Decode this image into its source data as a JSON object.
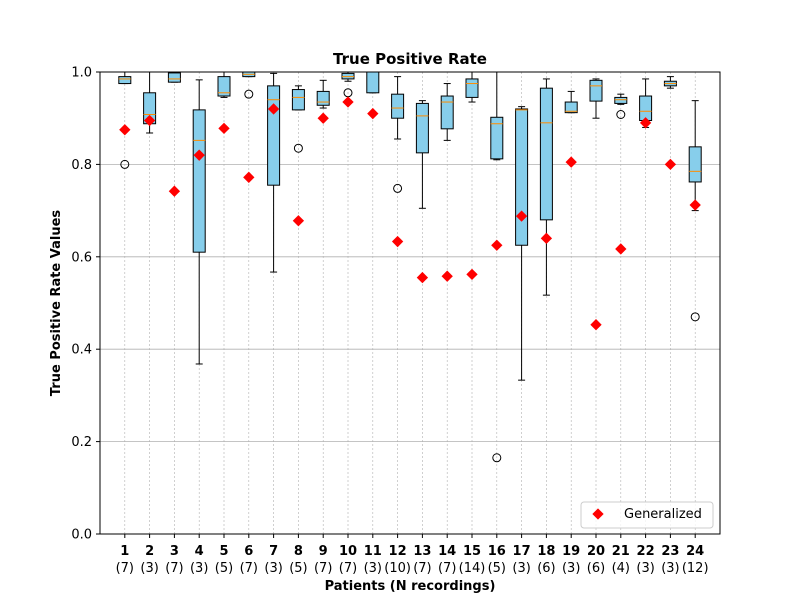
{
  "chart_data": {
    "type": "box",
    "title": "True Positive Rate",
    "xlabel": "Patients (N recordings)",
    "ylabel": "True Positive Rate Values",
    "ylim": [
      0.0,
      1.0
    ],
    "yticks": [
      "0.0",
      "0.2",
      "0.4",
      "0.6",
      "0.8",
      "1.0"
    ],
    "grid": true,
    "legend": {
      "placement": "lower-right",
      "entries": [
        "Generalized"
      ]
    },
    "colors": {
      "box_fill": "#87ceeb",
      "median": "#ff8c00",
      "generalized_marker": "#ff0000",
      "grid": "#b0b0b0"
    },
    "categories": [
      "1",
      "2",
      "3",
      "4",
      "5",
      "6",
      "7",
      "8",
      "9",
      "10",
      "11",
      "12",
      "13",
      "14",
      "15",
      "16",
      "17",
      "18",
      "19",
      "20",
      "21",
      "22",
      "23",
      "24"
    ],
    "n_recordings": [
      "(7)",
      "(3)",
      "(7)",
      "(3)",
      "(5)",
      "(7)",
      "(3)",
      "(5)",
      "(7)",
      "(7)",
      "(3)",
      "(10)",
      "(7)",
      "(7)",
      "(14)",
      "(5)",
      "(3)",
      "(6)",
      "(3)",
      "(6)",
      "(4)",
      "(3)",
      "(3)",
      "(12)"
    ],
    "boxes": [
      {
        "whislo": 0.975,
        "q1": 0.975,
        "med": 0.985,
        "q3": 0.99,
        "whishi": 1.0,
        "fliers": [
          0.8
        ]
      },
      {
        "whislo": 0.868,
        "q1": 0.888,
        "med": 0.908,
        "q3": 0.955,
        "whishi": 1.0,
        "fliers": []
      },
      {
        "whislo": 0.978,
        "q1": 0.978,
        "med": 0.985,
        "q3": 0.998,
        "whishi": 1.0,
        "fliers": []
      },
      {
        "whislo": 0.368,
        "q1": 0.61,
        "med": 0.852,
        "q3": 0.918,
        "whishi": 0.983,
        "fliers": []
      },
      {
        "whislo": 0.945,
        "q1": 0.948,
        "med": 0.955,
        "q3": 0.99,
        "whishi": 1.0,
        "fliers": []
      },
      {
        "whislo": 0.99,
        "q1": 0.99,
        "med": 0.995,
        "q3": 1.0,
        "whishi": 1.0,
        "fliers": [
          0.952
        ]
      },
      {
        "whislo": 0.567,
        "q1": 0.755,
        "med": 0.94,
        "q3": 0.97,
        "whishi": 0.997,
        "fliers": []
      },
      {
        "whislo": 0.918,
        "q1": 0.918,
        "med": 0.945,
        "q3": 0.962,
        "whishi": 0.97,
        "fliers": [
          0.835
        ]
      },
      {
        "whislo": 0.922,
        "q1": 0.928,
        "med": 0.935,
        "q3": 0.958,
        "whishi": 0.982,
        "fliers": []
      },
      {
        "whislo": 0.98,
        "q1": 0.985,
        "med": 0.99,
        "q3": 0.997,
        "whishi": 1.0,
        "fliers": [
          0.955
        ]
      },
      {
        "whislo": 0.955,
        "q1": 0.955,
        "med": 1.0,
        "q3": 1.0,
        "whishi": 1.0,
        "fliers": []
      },
      {
        "whislo": 0.855,
        "q1": 0.9,
        "med": 0.922,
        "q3": 0.952,
        "whishi": 0.99,
        "fliers": [
          0.748
        ]
      },
      {
        "whislo": 0.705,
        "q1": 0.825,
        "med": 0.905,
        "q3": 0.932,
        "whishi": 0.938,
        "fliers": []
      },
      {
        "whislo": 0.852,
        "q1": 0.877,
        "med": 0.935,
        "q3": 0.948,
        "whishi": 0.975,
        "fliers": []
      },
      {
        "whislo": 0.935,
        "q1": 0.945,
        "med": 0.975,
        "q3": 0.985,
        "whishi": 1.0,
        "fliers": []
      },
      {
        "whislo": 0.81,
        "q1": 0.812,
        "med": 0.888,
        "q3": 0.902,
        "whishi": 1.0,
        "fliers": [
          0.165
        ]
      },
      {
        "whislo": 0.333,
        "q1": 0.625,
        "med": 0.918,
        "q3": 0.92,
        "whishi": 0.925,
        "fliers": []
      },
      {
        "whislo": 0.517,
        "q1": 0.68,
        "med": 0.89,
        "q3": 0.965,
        "whishi": 0.985,
        "fliers": []
      },
      {
        "whislo": 0.912,
        "q1": 0.912,
        "med": 0.915,
        "q3": 0.935,
        "whishi": 0.958,
        "fliers": []
      },
      {
        "whislo": 0.9,
        "q1": 0.937,
        "med": 0.97,
        "q3": 0.982,
        "whishi": 0.985,
        "fliers": []
      },
      {
        "whislo": 0.93,
        "q1": 0.932,
        "med": 0.94,
        "q3": 0.945,
        "whishi": 0.952,
        "fliers": [
          0.908
        ]
      },
      {
        "whislo": 0.88,
        "q1": 0.895,
        "med": 0.915,
        "q3": 0.948,
        "whishi": 0.985,
        "fliers": []
      },
      {
        "whislo": 0.965,
        "q1": 0.97,
        "med": 0.975,
        "q3": 0.98,
        "whishi": 0.99,
        "fliers": []
      },
      {
        "whislo": 0.7,
        "q1": 0.762,
        "med": 0.785,
        "q3": 0.838,
        "whishi": 0.938,
        "fliers": [
          0.47
        ]
      }
    ],
    "series": [
      {
        "name": "Generalized",
        "values": [
          0.875,
          0.895,
          0.742,
          0.82,
          0.878,
          0.772,
          0.92,
          0.678,
          0.9,
          0.935,
          0.91,
          0.633,
          0.555,
          0.558,
          0.562,
          0.625,
          0.688,
          0.64,
          0.805,
          0.453,
          0.617,
          0.89,
          0.8,
          0.712
        ]
      }
    ]
  }
}
